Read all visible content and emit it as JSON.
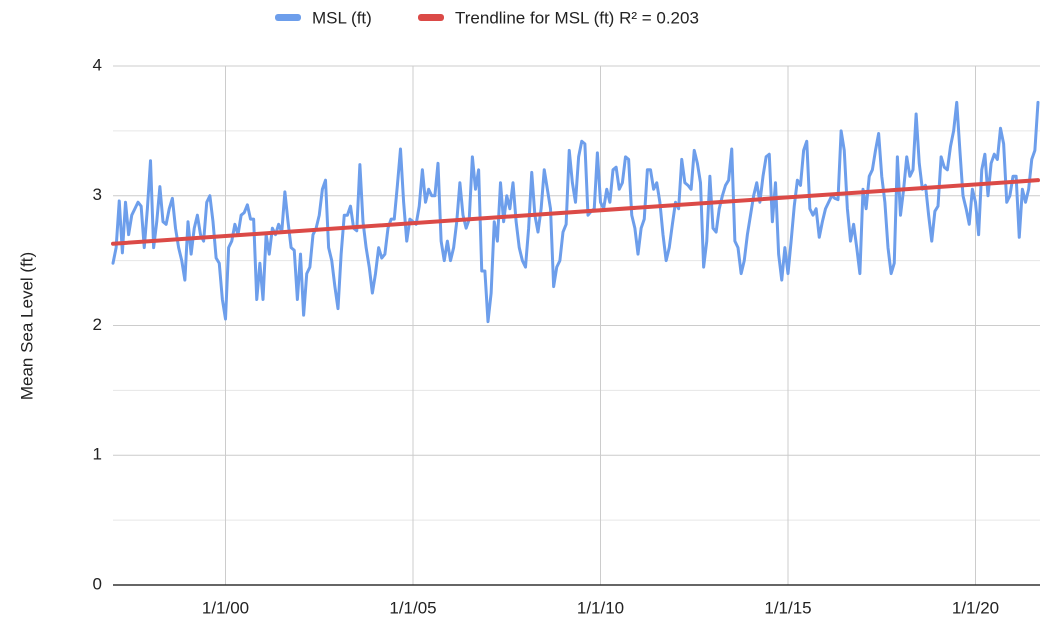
{
  "chart_data": {
    "type": "line",
    "y_label": "Mean Sea Level (ft)",
    "xlim": [
      "1997-01",
      "2021-09"
    ],
    "xticks": [
      {
        "value": "2000-01",
        "label": "1/1/00"
      },
      {
        "value": "2005-01",
        "label": "1/1/05"
      },
      {
        "value": "2010-01",
        "label": "1/1/10"
      },
      {
        "value": "2015-01",
        "label": "1/1/15"
      },
      {
        "value": "2020-01",
        "label": "1/1/20"
      }
    ],
    "ylim": [
      0,
      4
    ],
    "yticks": [
      0,
      1,
      2,
      3,
      4
    ],
    "grid": true,
    "legend": "top",
    "start": "1997-01",
    "series": [
      {
        "name": "MSL (ft)",
        "color": "#6d9eeb",
        "values": [
          2.48,
          2.6,
          2.96,
          2.56,
          2.95,
          2.7,
          2.85,
          2.9,
          2.95,
          2.92,
          2.6,
          2.9,
          3.27,
          2.6,
          2.8,
          3.07,
          2.8,
          2.78,
          2.9,
          2.98,
          2.75,
          2.6,
          2.5,
          2.35,
          2.8,
          2.55,
          2.75,
          2.85,
          2.7,
          2.65,
          2.95,
          3.0,
          2.8,
          2.52,
          2.48,
          2.2,
          2.05,
          2.6,
          2.65,
          2.78,
          2.7,
          2.85,
          2.87,
          2.93,
          2.82,
          2.82,
          2.2,
          2.48,
          2.2,
          2.7,
          2.55,
          2.75,
          2.7,
          2.78,
          2.72,
          3.03,
          2.8,
          2.6,
          2.58,
          2.2,
          2.55,
          2.08,
          2.4,
          2.45,
          2.7,
          2.75,
          2.85,
          3.05,
          3.12,
          2.6,
          2.5,
          2.3,
          2.13,
          2.55,
          2.85,
          2.85,
          2.92,
          2.75,
          2.73,
          3.24,
          2.8,
          2.6,
          2.45,
          2.25,
          2.4,
          2.6,
          2.52,
          2.55,
          2.75,
          2.82,
          2.82,
          3.08,
          3.36,
          2.95,
          2.65,
          2.82,
          2.8,
          2.78,
          2.92,
          3.2,
          2.95,
          3.05,
          3.0,
          3.0,
          3.25,
          2.65,
          2.5,
          2.65,
          2.5,
          2.6,
          2.8,
          3.1,
          2.85,
          2.75,
          2.82,
          3.3,
          3.05,
          3.2,
          2.42,
          2.42,
          2.03,
          2.25,
          2.8,
          2.65,
          3.1,
          2.8,
          3.0,
          2.9,
          3.1,
          2.8,
          2.6,
          2.5,
          2.45,
          2.75,
          3.18,
          2.85,
          2.72,
          2.9,
          3.2,
          3.05,
          2.9,
          2.3,
          2.45,
          2.5,
          2.72,
          2.78,
          3.35,
          3.1,
          2.95,
          3.3,
          3.42,
          3.4,
          2.85,
          2.88,
          2.9,
          3.33,
          2.95,
          2.9,
          3.05,
          2.95,
          3.2,
          3.22,
          3.05,
          3.1,
          3.3,
          3.28,
          2.85,
          2.75,
          2.55,
          2.75,
          2.82,
          3.2,
          3.2,
          3.05,
          3.1,
          2.95,
          2.7,
          2.5,
          2.6,
          2.78,
          2.95,
          2.9,
          3.28,
          3.1,
          3.08,
          3.05,
          3.35,
          3.25,
          3.1,
          2.45,
          2.65,
          3.15,
          2.75,
          2.72,
          2.9,
          3.0,
          3.08,
          3.12,
          3.36,
          2.65,
          2.6,
          2.4,
          2.5,
          2.7,
          2.85,
          3.0,
          3.1,
          2.95,
          3.15,
          3.3,
          3.32,
          2.8,
          3.1,
          2.55,
          2.35,
          2.6,
          2.4,
          2.65,
          2.92,
          3.12,
          3.08,
          3.35,
          3.42,
          2.9,
          2.85,
          2.9,
          2.68,
          2.8,
          2.9,
          2.95,
          3.0,
          2.98,
          2.97,
          3.5,
          3.35,
          2.9,
          2.65,
          2.78,
          2.6,
          2.4,
          3.05,
          2.9,
          3.15,
          3.2,
          3.35,
          3.48,
          3.15,
          2.95,
          2.6,
          2.4,
          2.48,
          3.3,
          2.85,
          3.05,
          3.3,
          3.15,
          3.2,
          3.63,
          3.25,
          3.05,
          3.08,
          2.85,
          2.65,
          2.88,
          2.92,
          3.3,
          3.22,
          3.2,
          3.38,
          3.5,
          3.72,
          3.35,
          3.0,
          2.9,
          2.78,
          3.05,
          2.95,
          2.7,
          3.2,
          3.32,
          3.0,
          3.25,
          3.32,
          3.28,
          3.52,
          3.4,
          2.95,
          3.0,
          3.15,
          3.15,
          2.68,
          3.05,
          2.95,
          3.05,
          3.28,
          3.35,
          3.72
        ]
      },
      {
        "name": "Trendline for MSL (ft) R² = 0.203",
        "color": "#db4a47",
        "x": [
          "1997-01",
          "2021-09"
        ],
        "values": [
          2.63,
          3.12
        ]
      }
    ]
  }
}
